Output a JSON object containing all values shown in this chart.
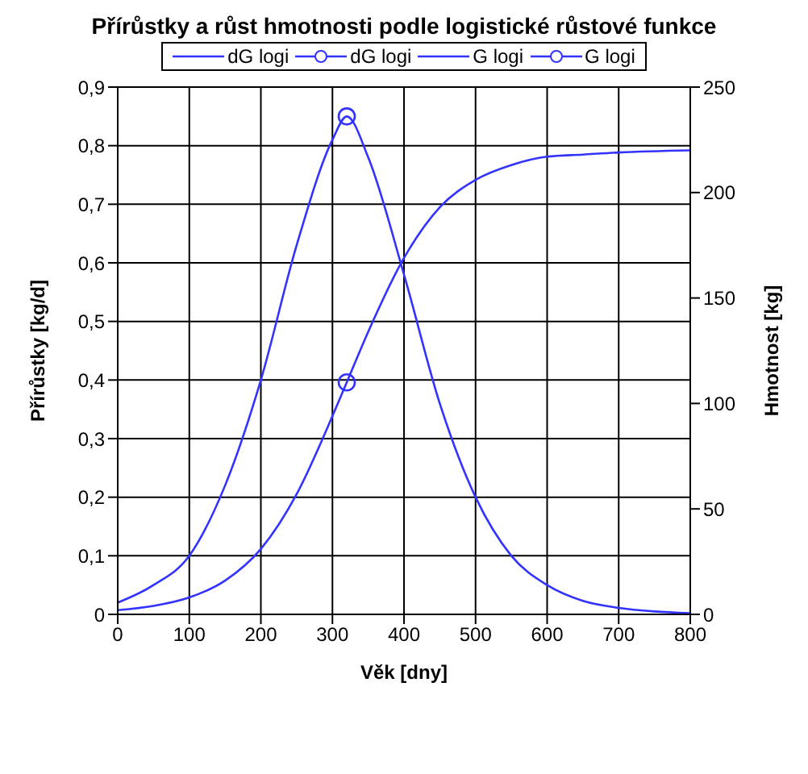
{
  "chart_data": {
    "type": "line",
    "title": "Přírůstky a růst hmotnosti  podle  logistické růstové funkce",
    "xlabel": "Věk [dny]",
    "ylabel": "Přírůstky [kg/d]",
    "y2label": "Hmotnost [kg]",
    "xlim": [
      0,
      800
    ],
    "xticks": [
      0,
      100,
      200,
      300,
      400,
      500,
      600,
      700,
      800
    ],
    "ylim": [
      0,
      0.9
    ],
    "yticks": [
      0,
      {
        "value": 0.1,
        "label": "0,1"
      },
      {
        "value": 0.2,
        "label": "0,2"
      },
      {
        "value": 0.3,
        "label": "0,3"
      },
      {
        "value": 0.4,
        "label": "0,4"
      },
      {
        "value": 0.5,
        "label": "0,5"
      },
      {
        "value": 0.6,
        "label": "0,6"
      },
      {
        "value": 0.7,
        "label": "0,7"
      },
      {
        "value": 0.8,
        "label": "0,8"
      },
      {
        "value": 0.9,
        "label": "0,9"
      }
    ],
    "y2lim": [
      0,
      250
    ],
    "y2ticks": [
      0,
      50,
      100,
      150,
      200,
      250
    ],
    "grid": true,
    "legend": "top",
    "line_style": "solid",
    "series": [
      {
        "name": "dG logi",
        "marker": "none",
        "color": "#3333ff",
        "x": [
          0,
          50,
          100,
          150,
          200,
          250,
          300,
          320,
          350,
          400,
          450,
          500,
          550,
          600,
          650,
          700,
          750,
          800
        ],
        "values": [
          0.02,
          0.05,
          0.1,
          0.22,
          0.4,
          0.63,
          0.81,
          0.85,
          0.78,
          0.58,
          0.36,
          0.2,
          0.1,
          0.05,
          0.023,
          0.011,
          0.005,
          0.002
        ]
      },
      {
        "name": "dG logi",
        "type": "scatter",
        "marker": "circle",
        "color": "#3333ff",
        "x": [
          320
        ],
        "values": [
          0.85
        ]
      },
      {
        "name": "G logi",
        "marker": "none",
        "axis": "y2",
        "color": "#3333ff",
        "x": [
          0,
          50,
          100,
          150,
          200,
          250,
          300,
          320,
          350,
          400,
          450,
          500,
          550,
          600,
          650,
          700,
          800
        ],
        "values": [
          2,
          4,
          8,
          16,
          31,
          57,
          94,
          110,
          134,
          169,
          193,
          206,
          213,
          217,
          218,
          219,
          220
        ]
      },
      {
        "name": "G logi",
        "type": "scatter",
        "marker": "circle",
        "axis": "y2",
        "color": "#3333ff",
        "x": [
          320
        ],
        "values": [
          110
        ]
      }
    ]
  }
}
